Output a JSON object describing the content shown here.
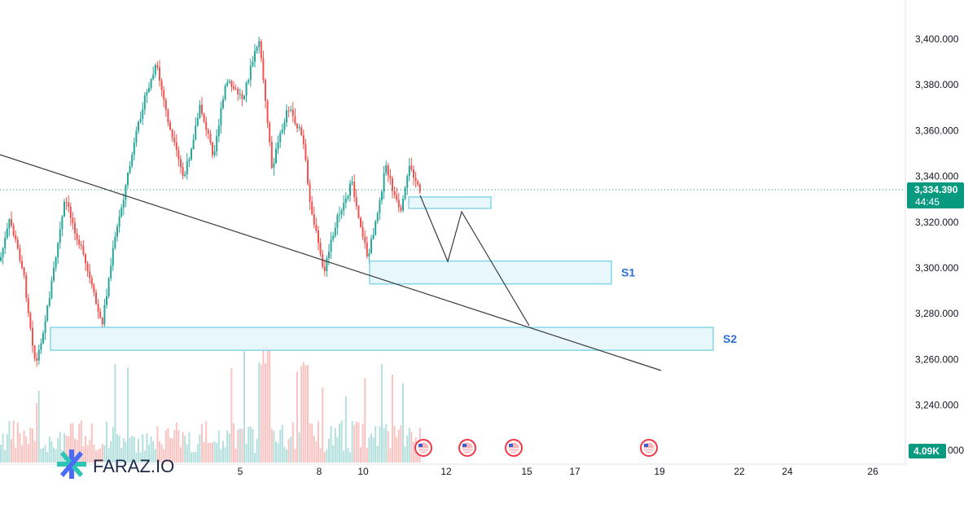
{
  "chart_data": {
    "type": "candlestick",
    "price_axis": {
      "ticks": [
        "3,400.000",
        "3,380.000",
        "3,360.000",
        "3,340.000",
        "3,320.000",
        "3,300.000",
        "3,280.000",
        "3,260.000",
        "3,240.000"
      ],
      "range": [
        3230,
        3416
      ]
    },
    "time_axis": {
      "ticks": [
        "5",
        "8",
        "10",
        "12",
        "15",
        "17",
        "19",
        "22",
        "24",
        "26"
      ]
    },
    "current_price": {
      "value": "3,334.390",
      "countdown": "44:45"
    },
    "volume_badge": "4.09K",
    "zones": [
      {
        "name": "",
        "low": 3326,
        "high": 3331
      },
      {
        "name": "S1",
        "low": 3293,
        "high": 3303
      },
      {
        "name": "S2",
        "low": 3264,
        "high": 3274
      }
    ],
    "colors": {
      "up": "#26a69a",
      "down": "#ef5350",
      "zone_fill": "#e3f6fb",
      "zone_border": "#86d7e8",
      "price_tag": "#089981",
      "zone_label": "#2f6fd6",
      "event_icon": "#f23645"
    }
  },
  "branding": {
    "logo_text": "FARAZ.IO"
  }
}
